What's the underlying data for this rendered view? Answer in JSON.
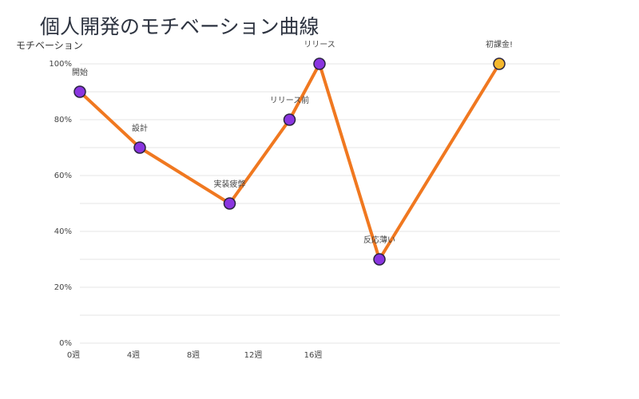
{
  "chart_data": {
    "type": "line",
    "title": "個人開発のモチベーション曲線",
    "xlabel": "",
    "ylabel": "モチベーション",
    "x": [
      0,
      4,
      10,
      14,
      16,
      20,
      28
    ],
    "values": [
      90,
      70,
      50,
      80,
      100,
      30,
      100
    ],
    "point_labels": [
      "開始",
      "設計",
      "実装疲弊",
      "リリース前",
      "リリース",
      "反応薄い",
      "初課金!"
    ],
    "xlim": [
      0,
      32
    ],
    "ylim": [
      0,
      100
    ],
    "xticks": [
      0,
      4,
      8,
      12,
      16
    ],
    "xtick_labels": [
      "0週",
      "4週",
      "8週",
      "12週",
      "16週"
    ],
    "yticks": [
      0,
      20,
      40,
      60,
      80,
      100
    ],
    "ytick_labels": [
      "0%",
      "20%",
      "40%",
      "60%",
      "80%",
      "100%"
    ],
    "grid": true,
    "colors": {
      "line": "#f07820",
      "point": "#8a35e0",
      "highlight_point": "#f5b82e",
      "grid": "#e4e4e4"
    }
  }
}
